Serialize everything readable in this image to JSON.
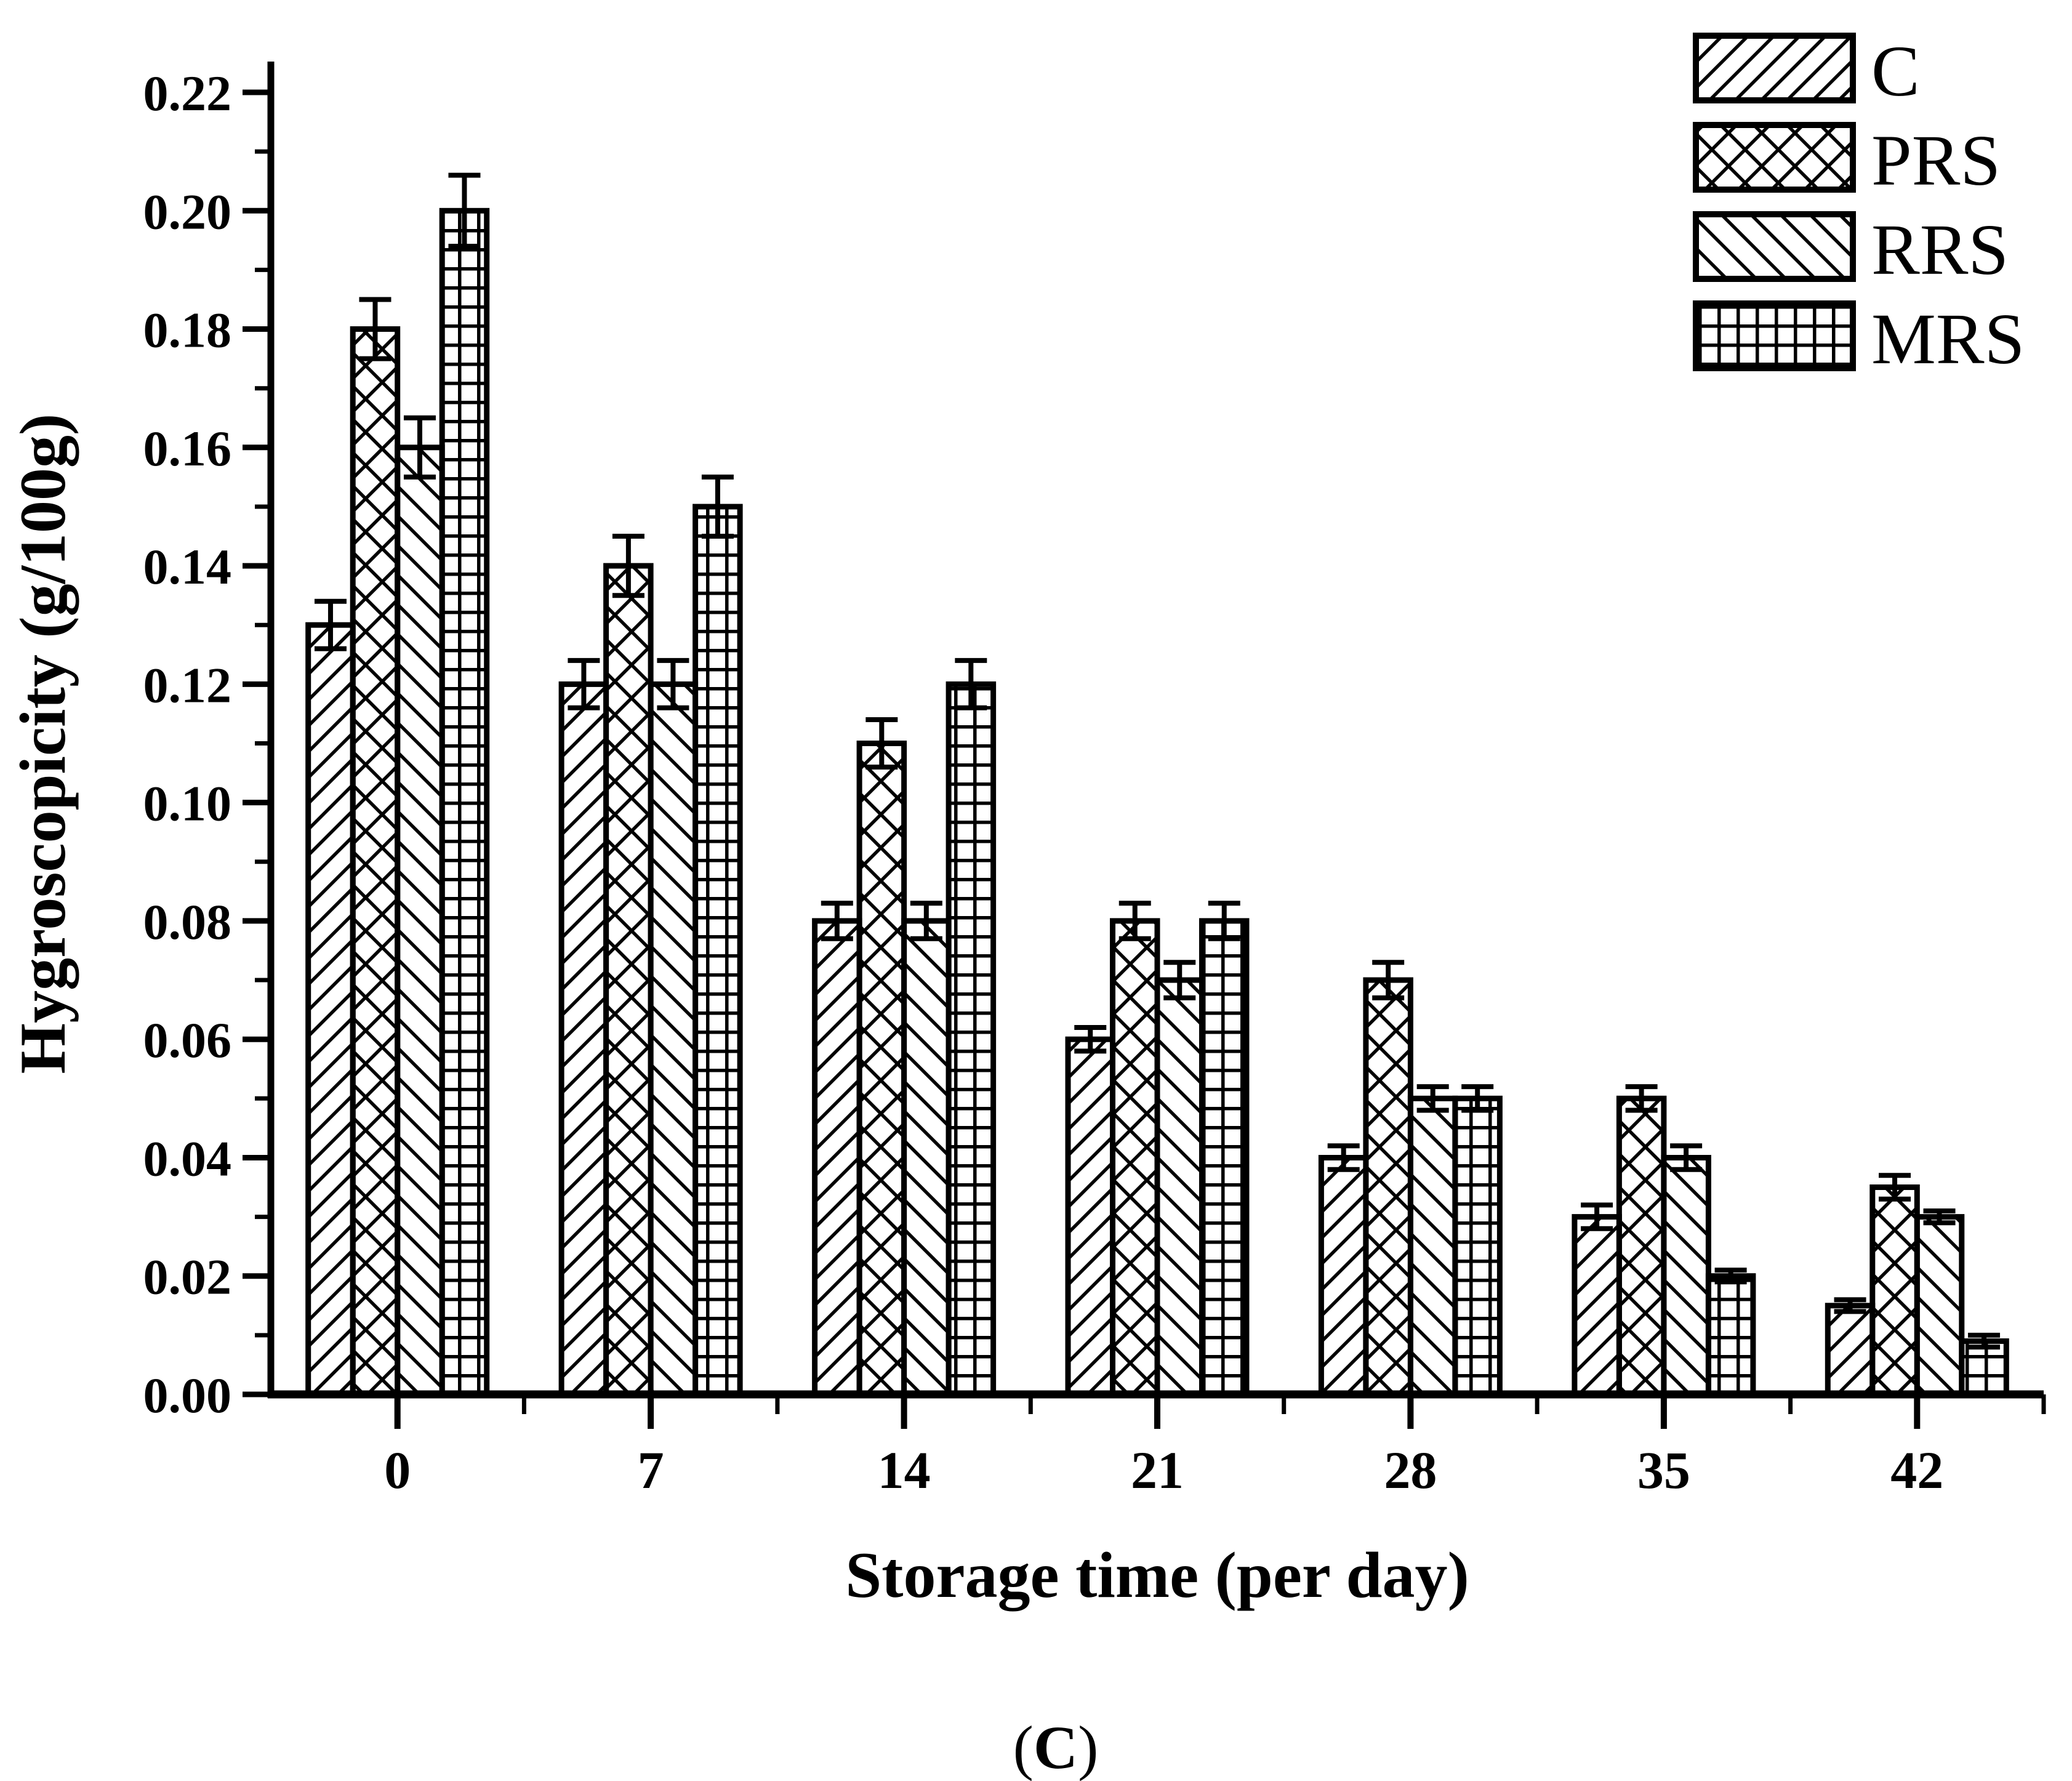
{
  "chart_data": {
    "type": "bar",
    "title": "",
    "xlabel": "Storage time (per day)",
    "ylabel": "Hygroscopicity (g/100g)",
    "caption": "(C)",
    "categories": [
      "0",
      "7",
      "14",
      "21",
      "28",
      "35",
      "42"
    ],
    "ylim": [
      0,
      0.22
    ],
    "ytick_step": 0.02,
    "ytick_minor_step": 0.01,
    "grid": false,
    "legend_position": "top-right",
    "error_bars": true,
    "series": [
      {
        "name": "C",
        "pattern": "diagonal-up",
        "values": [
          0.13,
          0.12,
          0.08,
          0.06,
          0.04,
          0.03,
          0.015
        ],
        "errors": [
          0.004,
          0.004,
          0.003,
          0.002,
          0.002,
          0.002,
          0.001
        ]
      },
      {
        "name": "PRS",
        "pattern": "crosshatch",
        "values": [
          0.18,
          0.14,
          0.11,
          0.08,
          0.07,
          0.05,
          0.035
        ],
        "errors": [
          0.005,
          0.005,
          0.004,
          0.003,
          0.003,
          0.002,
          0.002
        ]
      },
      {
        "name": "RRS",
        "pattern": "diagonal-down",
        "values": [
          0.16,
          0.12,
          0.08,
          0.07,
          0.05,
          0.04,
          0.03
        ],
        "errors": [
          0.005,
          0.004,
          0.003,
          0.003,
          0.002,
          0.002,
          0.001
        ]
      },
      {
        "name": "MRS",
        "pattern": "grid",
        "values": [
          0.2,
          0.15,
          0.12,
          0.08,
          0.05,
          0.02,
          0.009
        ],
        "errors": [
          0.006,
          0.005,
          0.004,
          0.003,
          0.002,
          0.001,
          0.001
        ]
      }
    ],
    "colors": {
      "foreground": "#000000",
      "background": "#ffffff"
    }
  }
}
